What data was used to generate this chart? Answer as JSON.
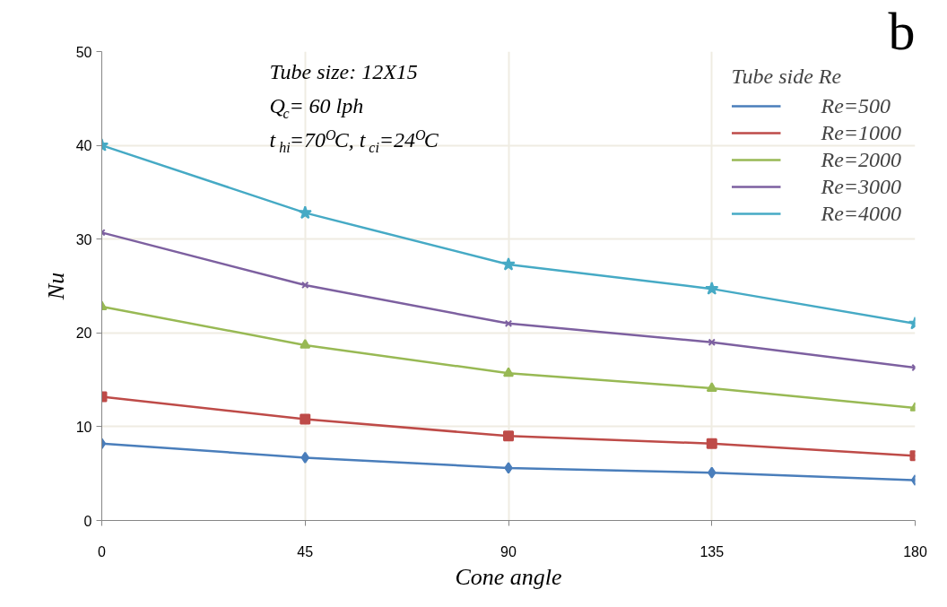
{
  "chart_data": {
    "type": "line",
    "xlabel": "Cone angle",
    "ylabel": "Nu",
    "x": [
      0,
      45,
      90,
      135,
      180
    ],
    "xlim": [
      0,
      180
    ],
    "xticks": [
      0,
      45,
      90,
      135,
      180
    ],
    "ylim": [
      0,
      50
    ],
    "yticks": [
      0,
      10,
      20,
      30,
      40,
      50
    ],
    "grid": true,
    "legend": "top right",
    "legend_title": "Tube side Re",
    "line_style": "solid",
    "annotations": [
      "Tube size: 12X15",
      "Q$_{c}$= 60 lph",
      "t$_{hi}$=70$^{O}$C, t$_{ci}$=24$^{O}$C",
      "b"
    ],
    "series": [
      {
        "name": "Re=500",
        "color": "#4a7ebb",
        "marker": "diamond",
        "values": [
          8.2,
          6.7,
          5.6,
          5.1,
          4.3
        ]
      },
      {
        "name": "Re=1000",
        "color": "#be4b48",
        "marker": "square",
        "values": [
          13.2,
          10.8,
          9.0,
          8.2,
          6.9
        ]
      },
      {
        "name": "Re=2000",
        "color": "#98b954",
        "marker": "triangle",
        "values": [
          22.8,
          18.7,
          15.7,
          14.1,
          12.0
        ]
      },
      {
        "name": "Re=3000",
        "color": "#7d60a0",
        "marker": "cross",
        "values": [
          30.7,
          25.1,
          21.0,
          19.0,
          16.3
        ]
      },
      {
        "name": "Re=4000",
        "color": "#46aac5",
        "marker": "star",
        "values": [
          40.0,
          32.8,
          27.3,
          24.7,
          21.0
        ]
      }
    ]
  }
}
